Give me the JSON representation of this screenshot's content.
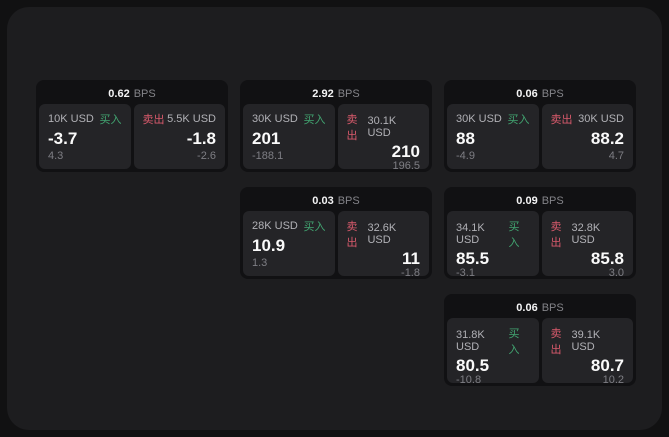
{
  "labels": {
    "buy": "买入",
    "sell": "卖出",
    "bps_unit": "BPS"
  },
  "colors": {
    "buy_green": "#42a571",
    "sell_red": "#d95a6c",
    "panel_bg": "#1d1d1f",
    "card_bg": "#111113",
    "tile_bg": "#242427"
  },
  "cards": [
    {
      "row": 1,
      "col": 1,
      "bps": "0.62",
      "buy": {
        "amount": "10K USD",
        "value": "-3.7",
        "sub": "4.3"
      },
      "sell": {
        "amount": "5.5K USD",
        "value": "-1.8",
        "sub": "-2.6"
      }
    },
    {
      "row": 1,
      "col": 2,
      "bps": "2.92",
      "buy": {
        "amount": "30K USD",
        "value": "201",
        "sub": "-188.1"
      },
      "sell": {
        "amount": "30.1K USD",
        "value": "210",
        "sub": "196.5"
      }
    },
    {
      "row": 1,
      "col": 3,
      "bps": "0.06",
      "buy": {
        "amount": "30K USD",
        "value": "88",
        "sub": "-4.9"
      },
      "sell": {
        "amount": "30K USD",
        "value": "88.2",
        "sub": "4.7"
      }
    },
    {
      "row": 2,
      "col": 2,
      "bps": "0.03",
      "buy": {
        "amount": "28K USD",
        "value": "10.9",
        "sub": "1.3"
      },
      "sell": {
        "amount": "32.6K USD",
        "value": "11",
        "sub": "-1.8"
      }
    },
    {
      "row": 2,
      "col": 3,
      "bps": "0.09",
      "buy": {
        "amount": "34.1K USD",
        "value": "85.5",
        "sub": "-3.1"
      },
      "sell": {
        "amount": "32.8K USD",
        "value": "85.8",
        "sub": "3.0"
      }
    },
    {
      "row": 3,
      "col": 3,
      "bps": "0.06",
      "buy": {
        "amount": "31.8K USD",
        "value": "80.5",
        "sub": "-10.8"
      },
      "sell": {
        "amount": "39.1K USD",
        "value": "80.7",
        "sub": "10.2"
      }
    }
  ]
}
